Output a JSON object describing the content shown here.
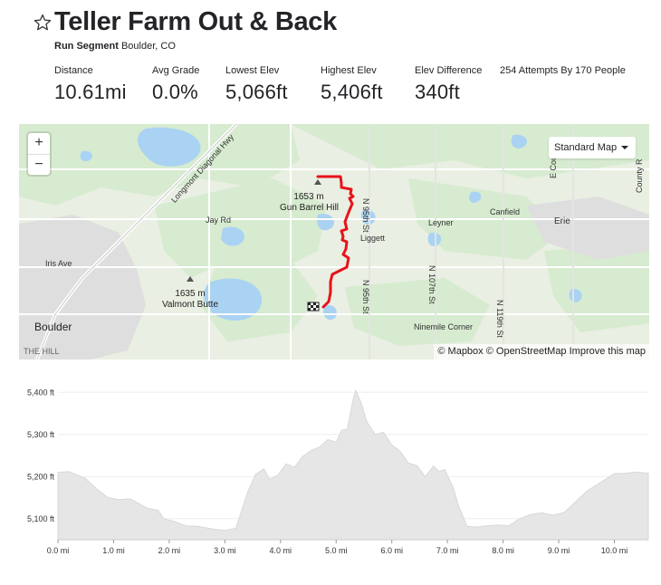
{
  "segment": {
    "title": "Teller Farm Out & Back",
    "type_label": "Run Segment",
    "location": "Boulder, CO",
    "star_icon": "star-outline-icon"
  },
  "stats": {
    "distance": {
      "label": "Distance",
      "value": "10.61mi"
    },
    "avg_grade": {
      "label": "Avg Grade",
      "value": "0.0%"
    },
    "lowest_elev": {
      "label": "Lowest Elev",
      "value": "5,066ft"
    },
    "highest_elev": {
      "label": "Highest Elev",
      "value": "5,406ft"
    },
    "elev_difference": {
      "label": "Elev Difference",
      "value": "340ft"
    },
    "attempts": "254 Attempts By 170 People"
  },
  "map": {
    "zoom_in": "+",
    "zoom_out": "−",
    "style_select": "Standard Map",
    "attribution": {
      "mapbox": "© Mapbox",
      "osm": "© OpenStreetMap",
      "improve": "Improve this map"
    },
    "labels": {
      "longmont_hwy": "Longmont Diagonal Hwy",
      "jay_rd": "Jay Rd",
      "iris_ave": "Iris Ave",
      "boulder": "Boulder",
      "the_hill": "THE HILL",
      "gun_barrel_elev": "1653 m",
      "gun_barrel_name": "Gun Barrel Hill",
      "valmont_elev": "1635 m",
      "valmont_name": "Valmont Butte",
      "liggett": "Liggett",
      "leyner": "Leyner",
      "canfield": "Canfield",
      "erie": "Erie",
      "ninemile": "Ninemile Corner",
      "n95th_top": "N 95th St",
      "n95th_bottom": "N 95th St",
      "n107th": "N 107th St",
      "n119th": "N 119th St",
      "county_rd": "County R",
      "e_cou": "E Cou"
    },
    "colors": {
      "route": "#e8121a",
      "water": "#aad3f3",
      "park": "#d6ebcf"
    }
  },
  "chart_data": {
    "type": "area",
    "title": "",
    "xlabel": "",
    "ylabel": "",
    "x_unit": "mi",
    "y_unit": "ft",
    "xlim": [
      0,
      10.61
    ],
    "ylim": [
      5050,
      5420
    ],
    "x_ticks": [
      0,
      1,
      2,
      3,
      4,
      5,
      6,
      7,
      8,
      9,
      10
    ],
    "x_tick_labels": [
      "0.0 mi",
      "1.0 mi",
      "2.0 mi",
      "3.0 mi",
      "4.0 mi",
      "5.0 mi",
      "6.0 mi",
      "7.0 mi",
      "8.0 mi",
      "9.0 mi",
      "10.0 mi"
    ],
    "y_ticks": [
      5100,
      5200,
      5300,
      5400
    ],
    "y_tick_labels": [
      "5,100 ft",
      "5,200 ft",
      "5,300 ft",
      "5,400 ft"
    ],
    "grid": true,
    "fill_color": "#e6e6e6",
    "series": [
      {
        "x": [
          0,
          0.2,
          0.5,
          0.7,
          0.9,
          1.1,
          1.3,
          1.6,
          1.8,
          1.9,
          2.1,
          2.3,
          2.5,
          2.8,
          3.0,
          3.2,
          3.4,
          3.55,
          3.7,
          3.8,
          3.95,
          4.1,
          4.25,
          4.4,
          4.55,
          4.7,
          4.85,
          5.0,
          5.1,
          5.2,
          5.3,
          5.35,
          5.45,
          5.55,
          5.7,
          5.85,
          6.0,
          6.15,
          6.3,
          6.45,
          6.6,
          6.75,
          6.85,
          6.95,
          7.1,
          7.2,
          7.35,
          7.5,
          7.7,
          7.9,
          8.1,
          8.3,
          8.5,
          8.7,
          8.9,
          9.1,
          9.3,
          9.5,
          9.8,
          10.0,
          10.2,
          10.4,
          10.61
        ],
        "y": [
          5210,
          5212,
          5195,
          5170,
          5150,
          5145,
          5147,
          5125,
          5120,
          5100,
          5093,
          5083,
          5082,
          5075,
          5072,
          5077,
          5160,
          5205,
          5218,
          5193,
          5203,
          5230,
          5222,
          5248,
          5262,
          5270,
          5288,
          5282,
          5310,
          5312,
          5380,
          5405,
          5375,
          5330,
          5300,
          5305,
          5275,
          5260,
          5232,
          5226,
          5200,
          5225,
          5212,
          5217,
          5175,
          5130,
          5082,
          5080,
          5083,
          5085,
          5083,
          5100,
          5110,
          5114,
          5108,
          5115,
          5140,
          5165,
          5190,
          5207,
          5208,
          5211,
          5208
        ]
      }
    ]
  }
}
